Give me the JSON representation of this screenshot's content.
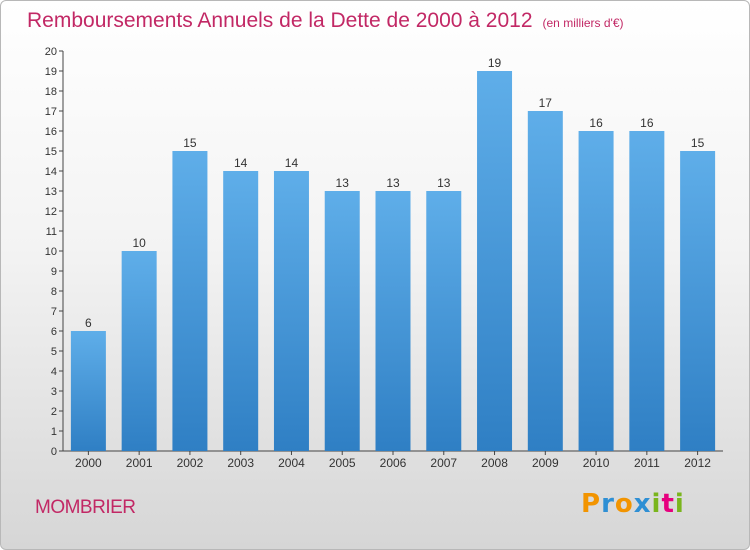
{
  "header": {
    "title": "Remboursements Annuels de la Dette de 2000 à 2012",
    "unit": "(en milliers d'€)"
  },
  "footer": {
    "commune": "MOMBRIER",
    "logo_text": "Proxiti",
    "logo_colors": [
      "#f29400",
      "#2e8fd4",
      "#f29400",
      "#2e8fd4",
      "#7ab51d",
      "#e6007e",
      "#7ab51d"
    ]
  },
  "colors": {
    "bar_light": "#5faee9",
    "bar_dark": "#2f7fc4",
    "title": "#c22865"
  },
  "chart_data": {
    "type": "bar",
    "categories": [
      "2000",
      "2001",
      "2002",
      "2003",
      "2004",
      "2005",
      "2006",
      "2007",
      "2008",
      "2009",
      "2010",
      "2011",
      "2012"
    ],
    "values": [
      6,
      10,
      15,
      14,
      14,
      13,
      13,
      13,
      19,
      17,
      16,
      16,
      15
    ],
    "ylim": [
      0,
      20
    ],
    "yticks": [
      0,
      1,
      2,
      3,
      4,
      5,
      6,
      7,
      8,
      9,
      10,
      11,
      12,
      13,
      14,
      15,
      16,
      17,
      18,
      19,
      20
    ],
    "grid": false
  }
}
